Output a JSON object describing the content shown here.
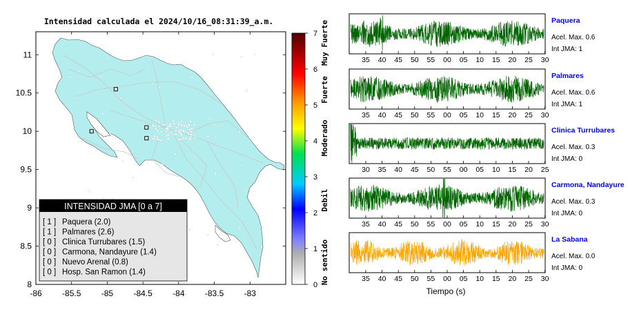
{
  "map": {
    "title": "Intensidad calculada el 2024/10/16_08:31:39_a.m.",
    "x_ticks": [
      "-86",
      "-85.5",
      "-85",
      "-84.5",
      "-84",
      "-83.5",
      "-83"
    ],
    "y_ticks": [
      "11",
      "10.5",
      "10",
      "9.5",
      "9",
      "8.5",
      "8"
    ],
    "land_color": "#b4eded",
    "legend": {
      "title": "INTENSIDAD JMA [0 a 7]",
      "items": [
        {
          "int": "[ 1 ]",
          "name": "Paquera (2.0)"
        },
        {
          "int": "[ 1 ]",
          "name": "Palmares (2.6)"
        },
        {
          "int": "[ 0 ]",
          "name": "Clinica Turrubares (1.5)"
        },
        {
          "int": "[ 0 ]",
          "name": "Carmona, Nandayure (1.4)"
        },
        {
          "int": "[ 0 ]",
          "name": "Nuevo Arenal (0.8)"
        },
        {
          "int": "[ 0 ]",
          "name": "Hosp. San Ramon (1.4)"
        }
      ]
    },
    "stations": [
      {
        "lon": -85.22,
        "lat": 10.0
      },
      {
        "lon": -84.88,
        "lat": 10.55
      },
      {
        "lon": -84.45,
        "lat": 10.05
      },
      {
        "lon": -84.45,
        "lat": 9.91
      }
    ]
  },
  "colorbar": {
    "ticks": [
      "0",
      "1",
      "2",
      "3",
      "4",
      "5",
      "6",
      "7"
    ],
    "labels": [
      "No sentido",
      "Debil",
      "Moderado",
      "Fuerte",
      "Muy Fuerte"
    ]
  },
  "traces": {
    "xlabel": "Tiempo (s)",
    "panels": [
      {
        "name": "Paquera",
        "acel": "Acel. Max. 0.6",
        "jma": "Int JMA: 1",
        "color": "#006400",
        "ticks": [
          "35",
          "40",
          "45",
          "50",
          "55",
          "00",
          "05",
          "10",
          "15",
          "20",
          "25",
          "30"
        ],
        "first": 35
      },
      {
        "name": "Palmares",
        "acel": "Acel. Max. 0.6",
        "jma": "Int JMA: 1",
        "color": "#006400",
        "ticks": [
          "35",
          "40",
          "45",
          "50",
          "55",
          "00",
          "05",
          "10",
          "15",
          "20",
          "25",
          "30"
        ],
        "first": 35
      },
      {
        "name": "Clinica Turrubares",
        "acel": "Acel. Max. 0.3",
        "jma": "Int JMA: 0",
        "color": "#006400",
        "ticks": [
          "30",
          "35",
          "40",
          "45",
          "50",
          "55",
          "00",
          "05",
          "10",
          "15",
          "20",
          "25"
        ],
        "first": 30
      },
      {
        "name": "Carmona, Nandayure",
        "acel": "Acel. Max. 0.3",
        "jma": "Int JMA: 0",
        "color": "#006400",
        "ticks": [
          "35",
          "40",
          "45",
          "50",
          "55",
          "00",
          "05",
          "10",
          "15",
          "20",
          "25",
          "30"
        ],
        "first": 35
      },
      {
        "name": "La Sabana",
        "acel": "Acel. Max. 0.0",
        "jma": "Int JMA: 0",
        "color": "#ffa500",
        "ticks": [
          "35",
          "40",
          "45",
          "50",
          "55",
          "00",
          "05",
          "10",
          "15",
          "20",
          "25",
          "30"
        ],
        "first": 35
      }
    ]
  },
  "chart_data": {
    "type": "scatter",
    "title": "Intensidad calculada el 2024/10/16_08:31:39_a.m.",
    "xlim": [
      -86,
      -82.5
    ],
    "ylim": [
      8,
      11.3
    ],
    "points": [
      {
        "x": -85.22,
        "y": 10.0
      },
      {
        "x": -84.88,
        "y": 10.55
      },
      {
        "x": -84.45,
        "y": 10.05
      },
      {
        "x": -84.45,
        "y": 9.91
      }
    ]
  }
}
